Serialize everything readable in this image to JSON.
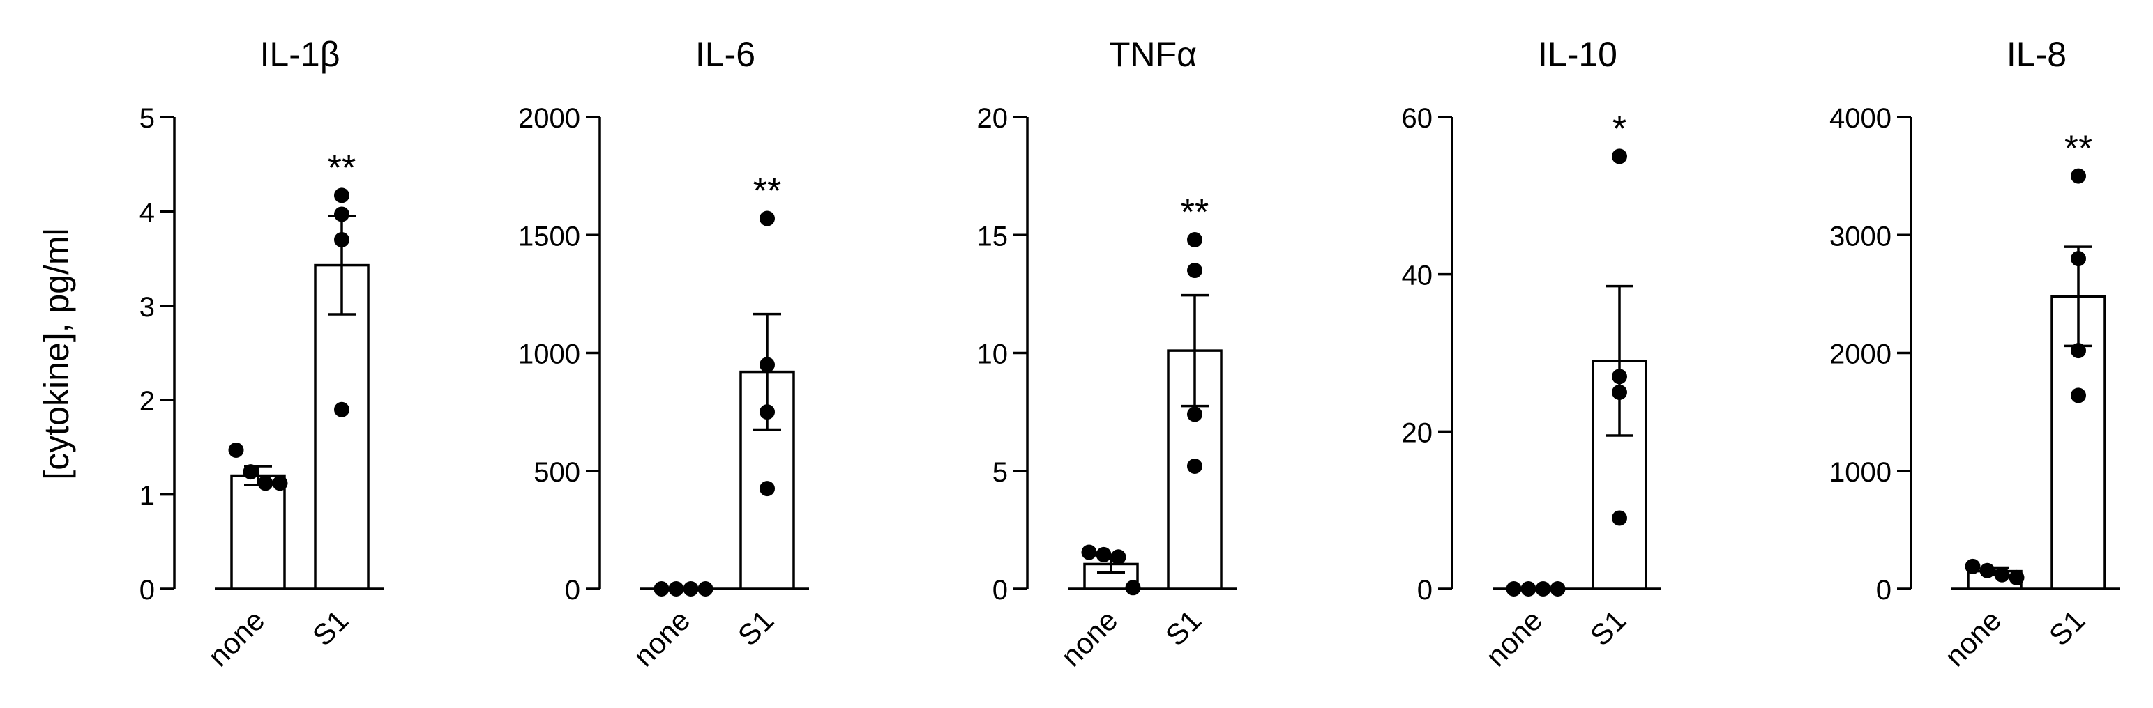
{
  "figure": {
    "ylabel": "[cytokine], pg/ml"
  },
  "chart_data": [
    {
      "type": "bar",
      "title": "IL-1β",
      "categories": [
        "none",
        "S1"
      ],
      "ylim": [
        0,
        5
      ],
      "yticks": [
        "0",
        "1",
        "2",
        "3",
        "4",
        "5"
      ],
      "values": [
        1.2,
        3.43
      ],
      "sem": [
        0.1,
        0.52
      ],
      "points": [
        [
          1.47,
          1.24,
          1.12,
          1.12
        ],
        [
          4.17,
          3.97,
          3.7,
          1.9
        ]
      ],
      "significance": [
        "",
        "**"
      ],
      "error_bars": true,
      "grid": false
    },
    {
      "type": "bar",
      "title": "IL-6",
      "categories": [
        "none",
        "S1"
      ],
      "ylim": [
        0,
        2000
      ],
      "yticks": [
        "0",
        "500",
        "1000",
        "1500",
        "2000"
      ],
      "values": [
        0,
        920
      ],
      "sem": [
        0,
        245
      ],
      "points": [
        [
          0,
          0,
          0,
          0
        ],
        [
          1570,
          950,
          750,
          425
        ]
      ],
      "significance": [
        "",
        "**"
      ],
      "error_bars": true,
      "grid": false
    },
    {
      "type": "bar",
      "title": "TNFα",
      "categories": [
        "none",
        "S1"
      ],
      "ylim": [
        0,
        20
      ],
      "yticks": [
        "0",
        "5",
        "10",
        "15",
        "20"
      ],
      "values": [
        1.05,
        10.1
      ],
      "sem": [
        0.35,
        2.35
      ],
      "points": [
        [
          1.55,
          1.45,
          1.35,
          0.05
        ],
        [
          14.8,
          13.5,
          7.4,
          5.2
        ]
      ],
      "significance": [
        "",
        "**"
      ],
      "error_bars": true,
      "grid": false
    },
    {
      "type": "bar",
      "title": "IL-10",
      "categories": [
        "none",
        "S1"
      ],
      "ylim": [
        0,
        60
      ],
      "yticks": [
        "0",
        "20",
        "40",
        "60"
      ],
      "values": [
        0,
        29
      ],
      "sem": [
        0,
        9.5
      ],
      "points": [
        [
          0,
          0,
          0,
          0
        ],
        [
          55,
          27,
          25,
          9
        ]
      ],
      "significance": [
        "",
        "*"
      ],
      "error_bars": true,
      "grid": false
    },
    {
      "type": "bar",
      "title": "IL-8",
      "categories": [
        "none",
        "S1"
      ],
      "ylim": [
        0,
        4000
      ],
      "yticks": [
        "0",
        "1000",
        "2000",
        "3000",
        "4000"
      ],
      "values": [
        150,
        2480
      ],
      "sem": [
        30,
        420
      ],
      "points": [
        [
          190,
          155,
          120,
          95
        ],
        [
          3500,
          2800,
          2020,
          1640
        ]
      ],
      "significance": [
        "",
        "**"
      ],
      "error_bars": true,
      "grid": false
    }
  ]
}
